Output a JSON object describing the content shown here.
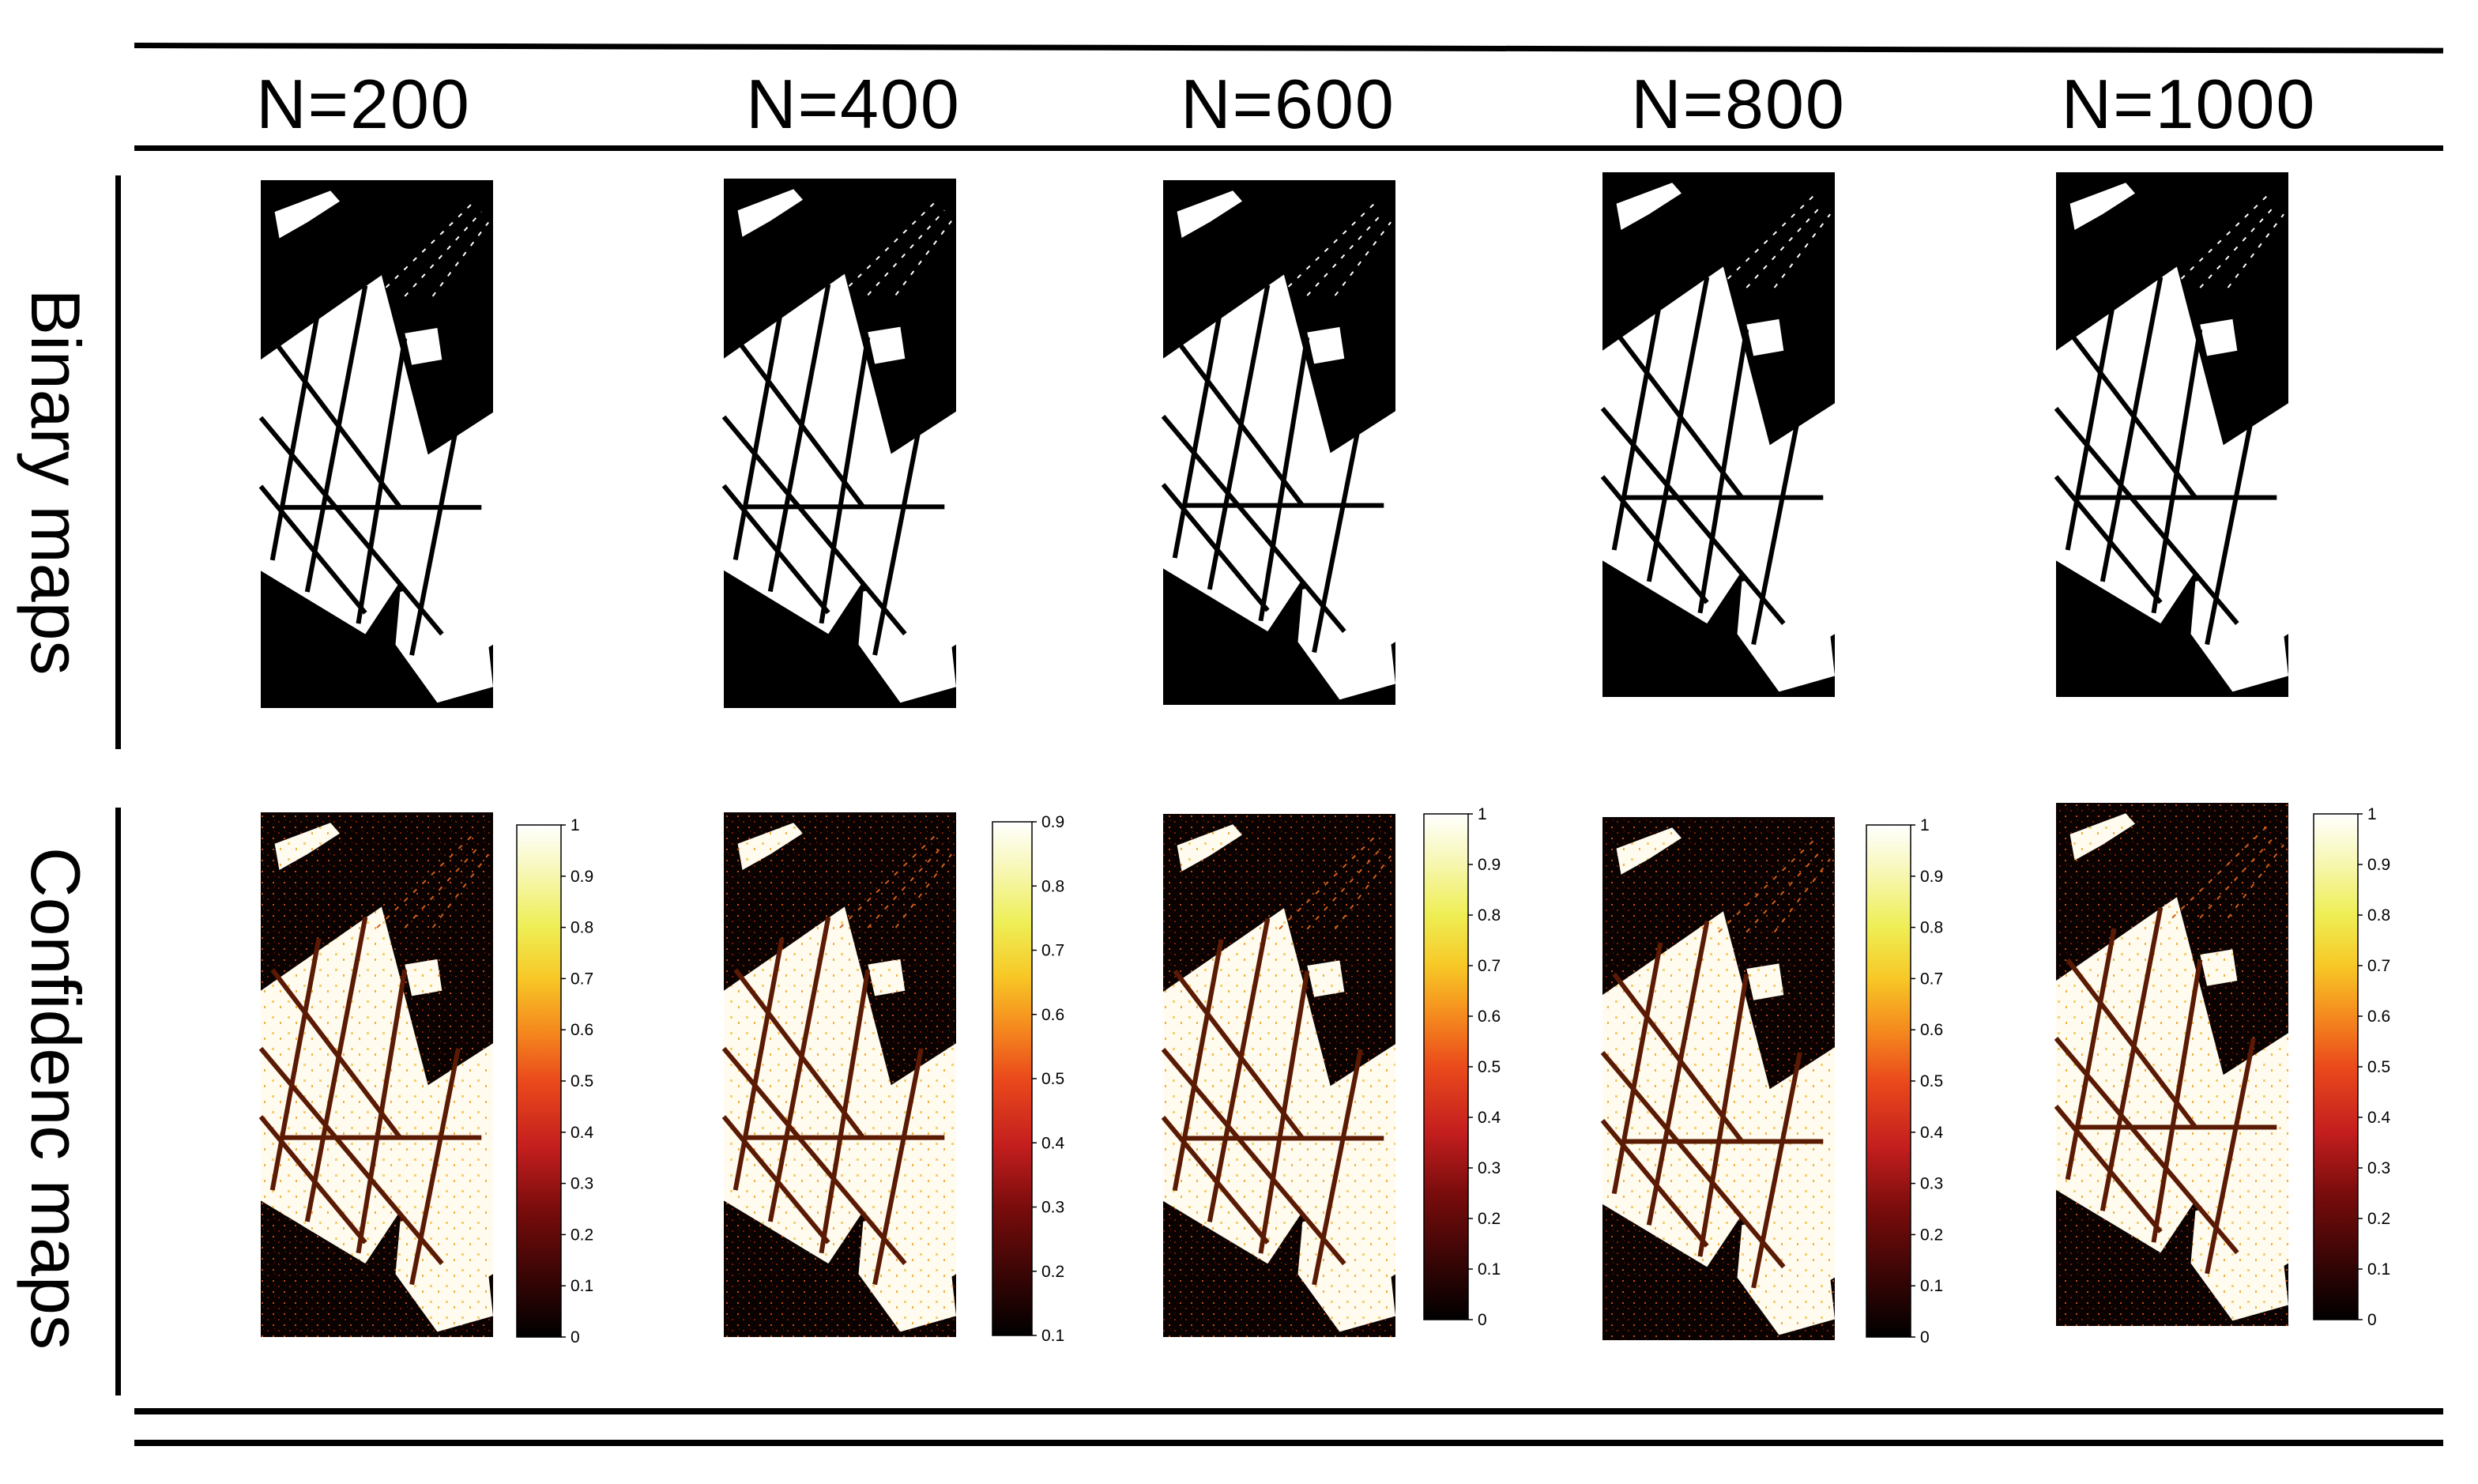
{
  "columns": [
    {
      "label": "N=200"
    },
    {
      "label": "N=400"
    },
    {
      "label": "N=600"
    },
    {
      "label": "N=800"
    },
    {
      "label": "N=1000"
    }
  ],
  "rows": [
    {
      "label": "Binary  maps"
    },
    {
      "label": "Confidenc maps"
    }
  ],
  "colorbars": [
    {
      "ticks": [
        "1",
        "0.9",
        "0.8",
        "0.7",
        "0.6",
        "0.5",
        "0.4",
        "0.3",
        "0.2",
        "0.1",
        "0"
      ]
    },
    {
      "ticks": [
        "0.9",
        "0.8",
        "0.7",
        "0.6",
        "0.5",
        "0.4",
        "0.3",
        "0.2",
        "0.1"
      ]
    },
    {
      "ticks": [
        "1",
        "0.9",
        "0.8",
        "0.7",
        "0.6",
        "0.5",
        "0.4",
        "0.3",
        "0.2",
        "0.1",
        "0"
      ]
    },
    {
      "ticks": [
        "1",
        "0.9",
        "0.8",
        "0.7",
        "0.6",
        "0.5",
        "0.4",
        "0.3",
        "0.2",
        "0.1",
        "0"
      ]
    },
    {
      "ticks": [
        "1",
        "0.9",
        "0.8",
        "0.7",
        "0.6",
        "0.5",
        "0.4",
        "0.3",
        "0.2",
        "0.1",
        "0"
      ]
    }
  ],
  "colormap": [
    "#000000",
    "#3a0505",
    "#7a0c0c",
    "#c41e1e",
    "#ea4a1c",
    "#f58a1e",
    "#f7c826",
    "#eeee55",
    "#f8f8c0",
    "#ffffff"
  ]
}
